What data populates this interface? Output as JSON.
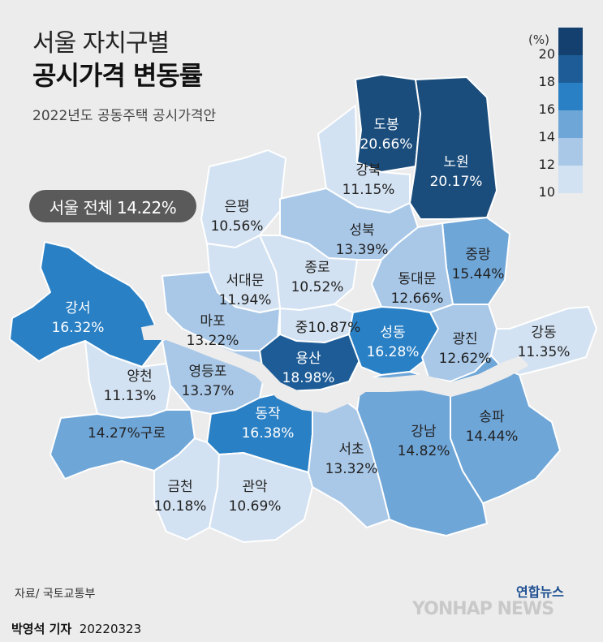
{
  "header": {
    "title_line1": "서울 자치구별",
    "title_line2": "공시가격 변동률",
    "subtitle": "2022년도 공동주택 공시가격안"
  },
  "badge": "서울 전체 14.22%",
  "legend": {
    "unit": "(%)",
    "ticks": [
      "20",
      "18",
      "16",
      "14",
      "12",
      "10"
    ],
    "colors": [
      "#13406e",
      "#1d5c96",
      "#2a80c4",
      "#6fa6d8",
      "#a9c8e8",
      "#d3e2f2"
    ]
  },
  "districts": [
    {
      "name": "도봉",
      "value": "20.66%"
    },
    {
      "name": "노원",
      "value": "20.17%"
    },
    {
      "name": "강북",
      "value": "11.15%"
    },
    {
      "name": "은평",
      "value": "10.56%"
    },
    {
      "name": "성북",
      "value": "13.39%"
    },
    {
      "name": "중랑",
      "value": "15.44%"
    },
    {
      "name": "종로",
      "value": "10.52%"
    },
    {
      "name": "동대문",
      "value": "12.66%"
    },
    {
      "name": "서대문",
      "value": "11.94%"
    },
    {
      "name": "강서",
      "value": "16.32%"
    },
    {
      "name": "마포",
      "value": "13.22%"
    },
    {
      "name": "중",
      "value": "10.87%"
    },
    {
      "name": "성동",
      "value": "16.28%"
    },
    {
      "name": "광진",
      "value": "12.62%"
    },
    {
      "name": "강동",
      "value": "11.35%"
    },
    {
      "name": "용산",
      "value": "18.98%"
    },
    {
      "name": "양천",
      "value": "11.13%"
    },
    {
      "name": "영등포",
      "value": "13.37%"
    },
    {
      "name": "구로",
      "value": "14.27%"
    },
    {
      "name": "동작",
      "value": "16.38%"
    },
    {
      "name": "서초",
      "value": "13.32%"
    },
    {
      "name": "강남",
      "value": "14.82%"
    },
    {
      "name": "송파",
      "value": "14.44%"
    },
    {
      "name": "금천",
      "value": "10.18%"
    },
    {
      "name": "관악",
      "value": "10.69%"
    }
  ],
  "footer": {
    "source": "자료/ 국토교통부",
    "reporter_name": "박영석 기자",
    "date": "20220323",
    "logo_ko": "연합뉴스",
    "logo_en": "YONHAP NEWS"
  }
}
